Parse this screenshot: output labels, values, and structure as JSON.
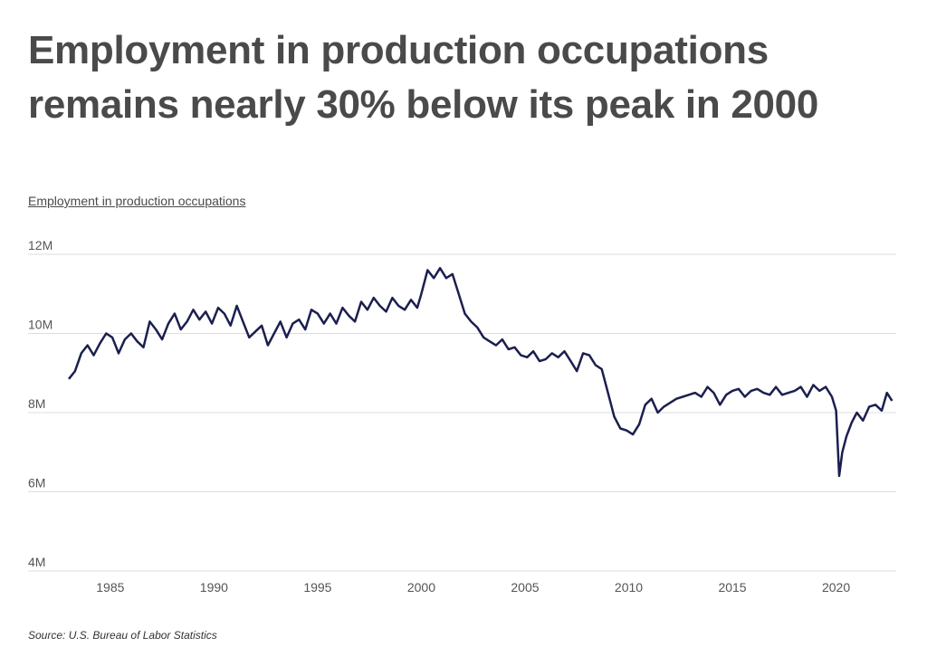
{
  "headline": "Employment in production occupations remains nearly 30% below its peak in 2000",
  "source": "Source:  U.S. Bureau of Labor Statistics",
  "colors": {
    "line": "#1b1f4f",
    "grid": "#dddddd",
    "text": "#4a4a4a"
  },
  "chart_data": {
    "type": "line",
    "title": "Employment in production occupations",
    "ylim": [
      4000000,
      12000000
    ],
    "xlim": [
      1983,
      2022.7
    ],
    "grid": true,
    "y_ticks": [
      {
        "value": 12000000,
        "label": "12M"
      },
      {
        "value": 10000000,
        "label": "10M"
      },
      {
        "value": 8000000,
        "label": "8M"
      },
      {
        "value": 6000000,
        "label": "6M"
      },
      {
        "value": 4000000,
        "label": "4M"
      }
    ],
    "x_ticks": [
      {
        "value": 1985,
        "label": "1985"
      },
      {
        "value": 1990,
        "label": "1990"
      },
      {
        "value": 1995,
        "label": "1995"
      },
      {
        "value": 2000,
        "label": "2000"
      },
      {
        "value": 2005,
        "label": "2005"
      },
      {
        "value": 2010,
        "label": "2010"
      },
      {
        "value": 2015,
        "label": "2015"
      },
      {
        "value": 2020,
        "label": "2020"
      }
    ],
    "series": [
      {
        "x": [
          1983.0,
          1983.3,
          1983.6,
          1983.9,
          1984.2,
          1984.5,
          1984.8,
          1985.1,
          1985.4,
          1985.7,
          1986.0,
          1986.3,
          1986.6,
          1986.9,
          1987.2,
          1987.5,
          1987.8,
          1988.1,
          1988.4,
          1988.7,
          1989.0,
          1989.3,
          1989.6,
          1989.9,
          1990.2,
          1990.5,
          1990.8,
          1991.1,
          1991.4,
          1991.7,
          1992.0,
          1992.3,
          1992.6,
          1992.9,
          1993.2,
          1993.5,
          1993.8,
          1994.1,
          1994.4,
          1994.7,
          1995.0,
          1995.3,
          1995.6,
          1995.9,
          1996.2,
          1996.5,
          1996.8,
          1997.1,
          1997.4,
          1997.7,
          1998.0,
          1998.3,
          1998.6,
          1998.9,
          1999.2,
          1999.5,
          1999.8,
          2000.0,
          2000.3,
          2000.6,
          2000.9,
          2001.2,
          2001.5,
          2001.8,
          2002.1,
          2002.4,
          2002.7,
          2003.0,
          2003.3,
          2003.6,
          2003.9,
          2004.2,
          2004.5,
          2004.8,
          2005.1,
          2005.4,
          2005.7,
          2006.0,
          2006.3,
          2006.6,
          2006.9,
          2007.2,
          2007.5,
          2007.8,
          2008.1,
          2008.4,
          2008.7,
          2009.0,
          2009.3,
          2009.6,
          2009.9,
          2010.2,
          2010.5,
          2010.8,
          2011.1,
          2011.4,
          2011.7,
          2012.0,
          2012.3,
          2012.6,
          2012.9,
          2013.2,
          2013.5,
          2013.8,
          2014.1,
          2014.4,
          2014.7,
          2015.0,
          2015.3,
          2015.6,
          2015.9,
          2016.2,
          2016.5,
          2016.8,
          2017.1,
          2017.4,
          2017.7,
          2018.0,
          2018.3,
          2018.6,
          2018.9,
          2019.2,
          2019.5,
          2019.8,
          2020.0,
          2020.15,
          2020.3,
          2020.5,
          2020.75,
          2021.0,
          2021.3,
          2021.6,
          2021.9,
          2022.2,
          2022.45,
          2022.7
        ],
        "y": [
          8850000,
          9050000,
          9500000,
          9700000,
          9450000,
          9750000,
          10000000,
          9900000,
          9500000,
          9850000,
          10000000,
          9800000,
          9650000,
          10300000,
          10100000,
          9850000,
          10250000,
          10500000,
          10100000,
          10300000,
          10600000,
          10350000,
          10550000,
          10250000,
          10650000,
          10500000,
          10200000,
          10700000,
          10300000,
          9900000,
          10050000,
          10200000,
          9700000,
          10000000,
          10300000,
          9900000,
          10250000,
          10350000,
          10100000,
          10600000,
          10500000,
          10250000,
          10500000,
          10250000,
          10650000,
          10450000,
          10300000,
          10800000,
          10600000,
          10900000,
          10700000,
          10550000,
          10900000,
          10700000,
          10600000,
          10850000,
          10650000,
          11000000,
          11600000,
          11400000,
          11650000,
          11400000,
          11500000,
          11000000,
          10500000,
          10300000,
          10150000,
          9900000,
          9800000,
          9700000,
          9850000,
          9600000,
          9650000,
          9450000,
          9400000,
          9550000,
          9300000,
          9350000,
          9500000,
          9400000,
          9550000,
          9300000,
          9050000,
          9500000,
          9450000,
          9200000,
          9100000,
          8500000,
          7900000,
          7600000,
          7550000,
          7450000,
          7700000,
          8200000,
          8350000,
          8000000,
          8150000,
          8250000,
          8350000,
          8400000,
          8450000,
          8500000,
          8400000,
          8650000,
          8500000,
          8200000,
          8450000,
          8550000,
          8600000,
          8400000,
          8550000,
          8600000,
          8500000,
          8450000,
          8650000,
          8450000,
          8500000,
          8550000,
          8650000,
          8400000,
          8700000,
          8550000,
          8650000,
          8400000,
          8050000,
          6400000,
          7000000,
          7400000,
          7750000,
          8000000,
          7800000,
          8150000,
          8200000,
          8050000,
          8500000,
          8300000
        ],
        "color": "#1b1f4f"
      }
    ]
  }
}
